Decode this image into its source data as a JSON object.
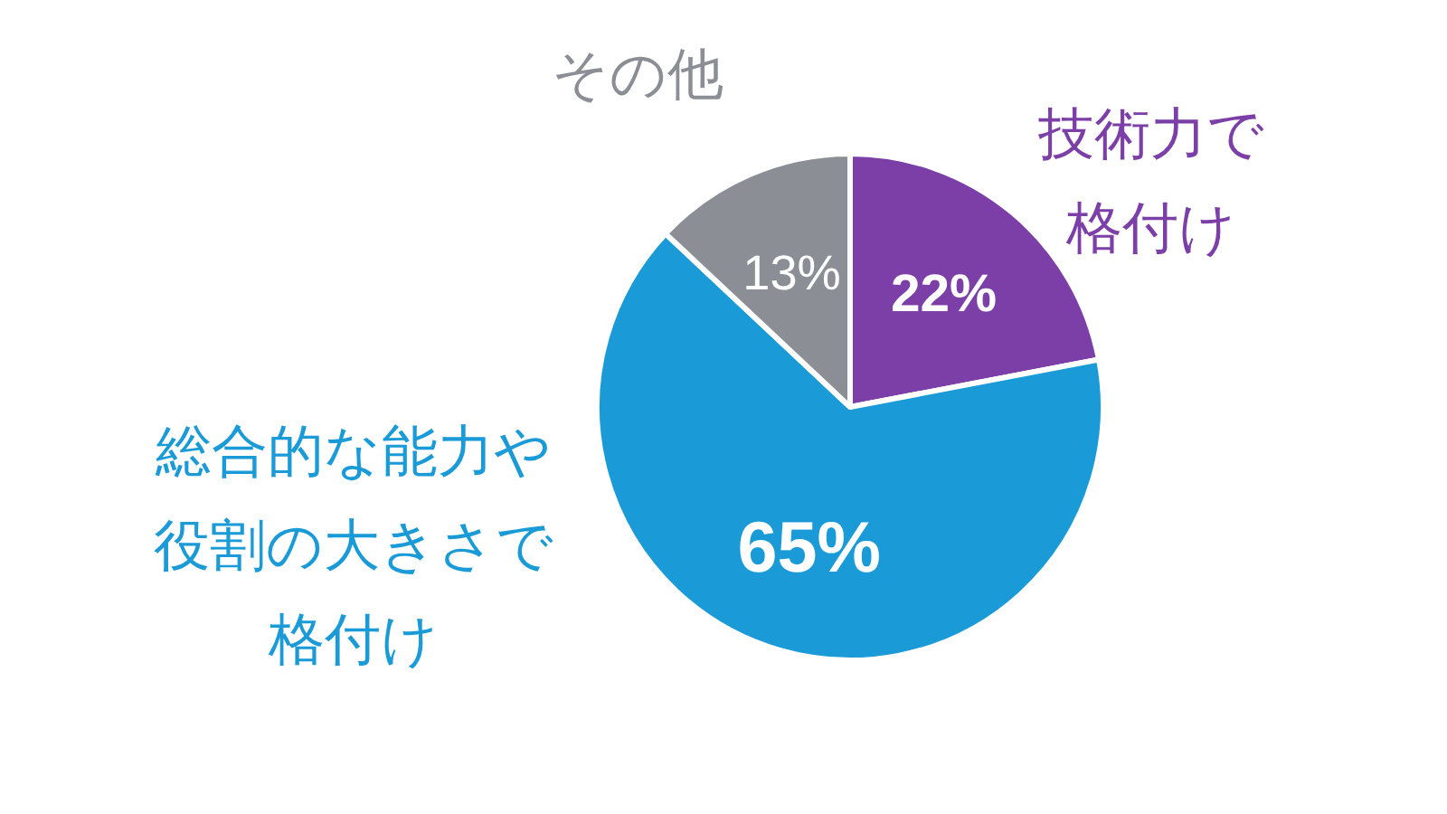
{
  "chart_data": {
    "type": "pie",
    "categories": [
      "技術力で格付け",
      "総合的な能力や役割の大きさで格付け",
      "その他"
    ],
    "values": [
      22,
      65,
      13
    ],
    "colors": [
      "#7b3fa7",
      "#1a9bd7",
      "#8b8f95"
    ],
    "value_labels": [
      "22%",
      "65%",
      "13%"
    ]
  }
}
